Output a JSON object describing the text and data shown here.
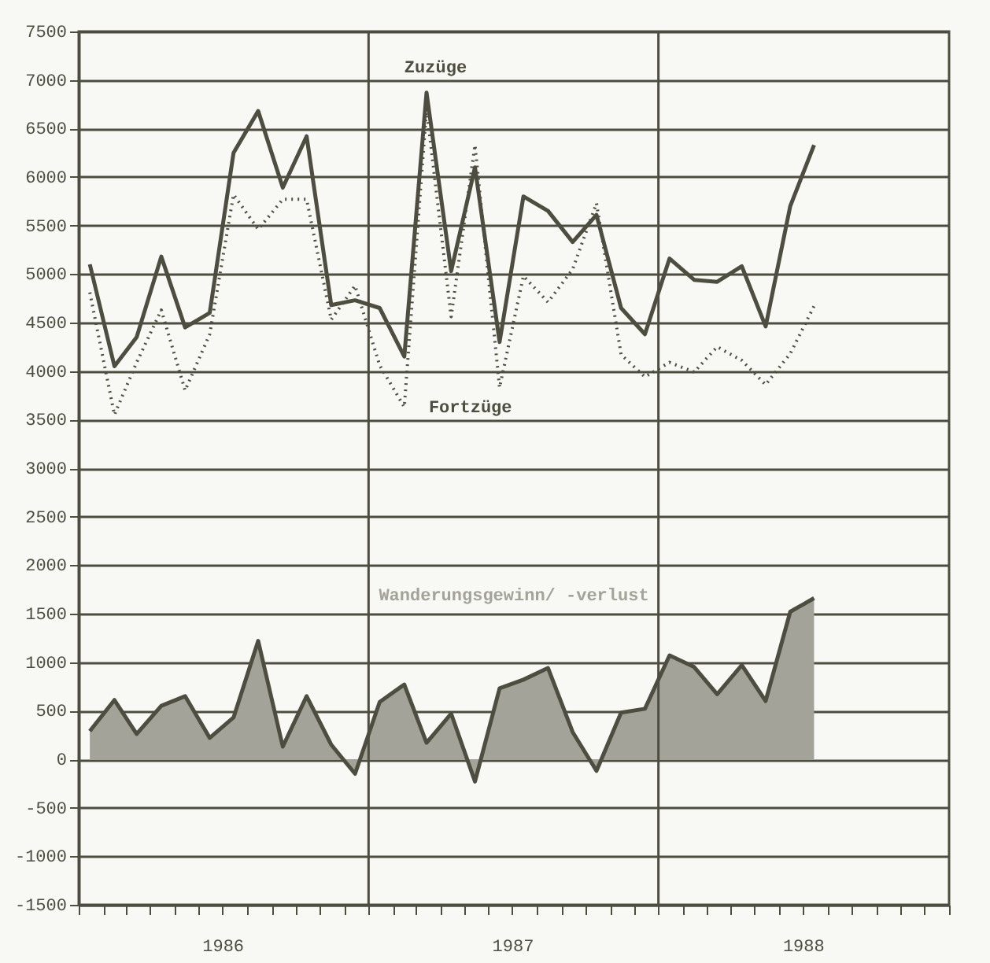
{
  "chart_data": {
    "type": "line",
    "x": [
      "1986-01-15",
      "1986-02-15",
      "1986-03-15",
      "1986-04-15",
      "1986-05-15",
      "1986-06-15",
      "1986-07-15",
      "1986-08-15",
      "1986-09-15",
      "1986-10-15",
      "1986-11-15",
      "1986-12-15",
      "1987-01-15",
      "1987-02-15",
      "1987-03-15",
      "1987-04-15",
      "1987-05-15",
      "1987-06-15",
      "1987-07-15",
      "1987-08-15",
      "1987-09-15",
      "1987-10-15",
      "1987-11-15",
      "1987-12-15",
      "1988-01-15",
      "1988-02-15",
      "1988-03-15",
      "1988-04-15",
      "1988-05-15",
      "1988-06-15",
      "1988-07-15"
    ],
    "series": [
      {
        "name": "Zuzüge",
        "line_style": "solid",
        "color": "#4d4d40",
        "values": [
          5100,
          4050,
          4350,
          5180,
          4450,
          4600,
          6250,
          6680,
          5890,
          6420,
          4680,
          4730,
          4650,
          4150,
          6870,
          5030,
          6100,
          4300,
          5800,
          5650,
          5330,
          5610,
          4650,
          4380,
          5160,
          4940,
          4920,
          5080,
          4460,
          5700,
          6330
        ]
      },
      {
        "name": "Fortzüge",
        "line_style": "dotted",
        "color": "#4d4d40",
        "values": [
          4810,
          3550,
          4090,
          4630,
          3800,
          4380,
          5820,
          5460,
          5770,
          5770,
          4530,
          4880,
          4060,
          3630,
          6700,
          4560,
          6330,
          3830,
          4980,
          4710,
          5050,
          5730,
          4170,
          3940,
          4090,
          3990,
          4250,
          4110,
          3860,
          4180,
          4670
        ]
      },
      {
        "name": "Wanderungsgewinn/ -verlust",
        "type": "area",
        "color": "#a3a39a",
        "values": [
          290,
          610,
          260,
          550,
          650,
          220,
          430,
          1220,
          130,
          650,
          150,
          -150,
          590,
          770,
          170,
          470,
          -230,
          730,
          820,
          940,
          280,
          -120,
          480,
          520,
          1070,
          950,
          670,
          970,
          600,
          1520,
          1660
        ]
      }
    ],
    "xlim": [
      "1986-01-01",
      "1989-01-01"
    ],
    "xticks": [
      {
        "value": "1986-01-01",
        "label": null
      },
      {
        "value": "1986-02-01",
        "label": null
      },
      {
        "value": "1986-03-01",
        "label": null
      },
      {
        "value": "1986-04-01",
        "label": null
      },
      {
        "value": "1986-05-01",
        "label": null
      },
      {
        "value": "1986-06-01",
        "label": null
      },
      {
        "value": "1986-07-01",
        "label": "1986"
      },
      {
        "value": "1986-08-01",
        "label": null
      },
      {
        "value": "1986-09-01",
        "label": null
      },
      {
        "value": "1986-10-01",
        "label": null
      },
      {
        "value": "1986-11-01",
        "label": null
      },
      {
        "value": "1986-12-01",
        "label": null
      },
      {
        "value": "1987-01-01",
        "label": null
      },
      {
        "value": "1987-02-01",
        "label": null
      },
      {
        "value": "1987-03-01",
        "label": null
      },
      {
        "value": "1987-04-01",
        "label": null
      },
      {
        "value": "1987-05-01",
        "label": null
      },
      {
        "value": "1987-06-01",
        "label": null
      },
      {
        "value": "1987-07-01",
        "label": "1987"
      },
      {
        "value": "1987-08-01",
        "label": null
      },
      {
        "value": "1987-09-01",
        "label": null
      },
      {
        "value": "1987-10-01",
        "label": null
      },
      {
        "value": "1987-11-01",
        "label": null
      },
      {
        "value": "1987-12-01",
        "label": null
      },
      {
        "value": "1988-01-01",
        "label": null
      },
      {
        "value": "1988-02-01",
        "label": null
      },
      {
        "value": "1988-03-01",
        "label": null
      },
      {
        "value": "1988-04-01",
        "label": null
      },
      {
        "value": "1988-05-01",
        "label": null
      },
      {
        "value": "1988-06-01",
        "label": null
      },
      {
        "value": "1988-07-01",
        "label": "1988"
      },
      {
        "value": "1988-08-01",
        "label": null
      },
      {
        "value": "1988-09-01",
        "label": null
      },
      {
        "value": "1988-10-01",
        "label": null
      },
      {
        "value": "1988-11-01",
        "label": null
      },
      {
        "value": "1988-12-01",
        "label": null
      },
      {
        "value": "1989-01-01",
        "label": null
      }
    ],
    "ylim": [
      -1500,
      7500
    ],
    "yticks": [
      -1500,
      -1000,
      -500,
      0,
      500,
      1000,
      1500,
      2000,
      2500,
      3000,
      3500,
      4000,
      4500,
      5000,
      5500,
      6000,
      6500,
      7000,
      7500
    ],
    "grid": "y",
    "ref_lines": [
      {
        "axis": "x",
        "value": "1987-01-01",
        "label": null
      },
      {
        "axis": "x",
        "value": "1988-01-01",
        "label": null
      }
    ],
    "marker": "none"
  }
}
